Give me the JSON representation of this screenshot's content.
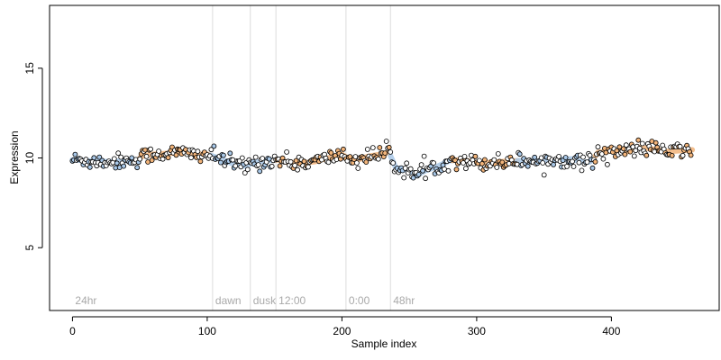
{
  "colors": {
    "point_stroke": "#000000",
    "fill_blue": "#a9c8e8",
    "fill_orange": "#f2b47a",
    "fill_white": "#ffffff",
    "vline": "#dcdcdc",
    "annotation_text": "#a9a9a9"
  },
  "chart_data": {
    "type": "scatter",
    "title": "",
    "xlabel": "Sample index",
    "ylabel": "Expression",
    "xlim": [
      -17,
      480
    ],
    "ylim": [
      1.5,
      18.5
    ],
    "xticks": [
      0,
      100,
      200,
      300,
      400
    ],
    "yticks": [
      5,
      10,
      15
    ],
    "x_tick_labels": [
      "0",
      "100",
      "200",
      "300",
      "400"
    ],
    "y_tick_labels": [
      "5",
      "10",
      "15"
    ],
    "grid": false,
    "legend": "none",
    "n_points": 460,
    "segments": [
      {
        "label": "24hr",
        "x": 0
      },
      {
        "label": "dawn",
        "x": 104
      },
      {
        "label": "dusk",
        "x": 132
      },
      {
        "label": "12:00",
        "x": 151
      },
      {
        "label": "0:00",
        "x": 203
      },
      {
        "label": "48hr",
        "x": 236
      }
    ],
    "trend_knots": [
      [
        0,
        9.9
      ],
      [
        10,
        9.85
      ],
      [
        20,
        9.8
      ],
      [
        30,
        9.8
      ],
      [
        40,
        9.85
      ],
      [
        48,
        9.9
      ],
      [
        52,
        10.1
      ],
      [
        60,
        10.2
      ],
      [
        70,
        10.25
      ],
      [
        80,
        10.3
      ],
      [
        90,
        10.2
      ],
      [
        100,
        10.2
      ],
      [
        108,
        10.0
      ],
      [
        115,
        9.8
      ],
      [
        120,
        9.65
      ],
      [
        128,
        9.55
      ],
      [
        135,
        9.75
      ],
      [
        145,
        9.85
      ],
      [
        152,
        9.9
      ],
      [
        160,
        9.75
      ],
      [
        170,
        9.7
      ],
      [
        180,
        9.8
      ],
      [
        190,
        10.0
      ],
      [
        200,
        10.2
      ],
      [
        205,
        9.95
      ],
      [
        212,
        9.9
      ],
      [
        220,
        10.1
      ],
      [
        228,
        10.2
      ],
      [
        235,
        10.3
      ],
      [
        240,
        9.45
      ],
      [
        250,
        9.3
      ],
      [
        255,
        9.0
      ],
      [
        262,
        9.3
      ],
      [
        270,
        9.5
      ],
      [
        280,
        9.85
      ],
      [
        290,
        9.9
      ],
      [
        300,
        9.7
      ],
      [
        310,
        9.75
      ],
      [
        320,
        9.8
      ],
      [
        330,
        9.85
      ],
      [
        340,
        9.85
      ],
      [
        350,
        9.8
      ],
      [
        360,
        9.9
      ],
      [
        370,
        9.95
      ],
      [
        380,
        9.75
      ],
      [
        385,
        9.8
      ],
      [
        390,
        10.3
      ],
      [
        400,
        10.4
      ],
      [
        410,
        10.3
      ],
      [
        420,
        10.6
      ],
      [
        430,
        10.5
      ],
      [
        440,
        10.35
      ],
      [
        450,
        10.4
      ],
      [
        460,
        10.45
      ]
    ],
    "fill_ranges": [
      {
        "from": 0,
        "to": 50,
        "fill": "blue"
      },
      {
        "from": 50,
        "to": 102,
        "fill": "orange"
      },
      {
        "from": 102,
        "to": 150,
        "fill": "blue"
      },
      {
        "from": 150,
        "to": 203,
        "fill": "orange"
      },
      {
        "from": 203,
        "to": 236,
        "fill": "orange"
      },
      {
        "from": 236,
        "to": 282,
        "fill": "blue"
      },
      {
        "from": 282,
        "to": 330,
        "fill": "orange"
      },
      {
        "from": 330,
        "to": 388,
        "fill": "blue"
      },
      {
        "from": 388,
        "to": 460,
        "fill": "orange"
      }
    ],
    "noise_sd": 0.22
  }
}
